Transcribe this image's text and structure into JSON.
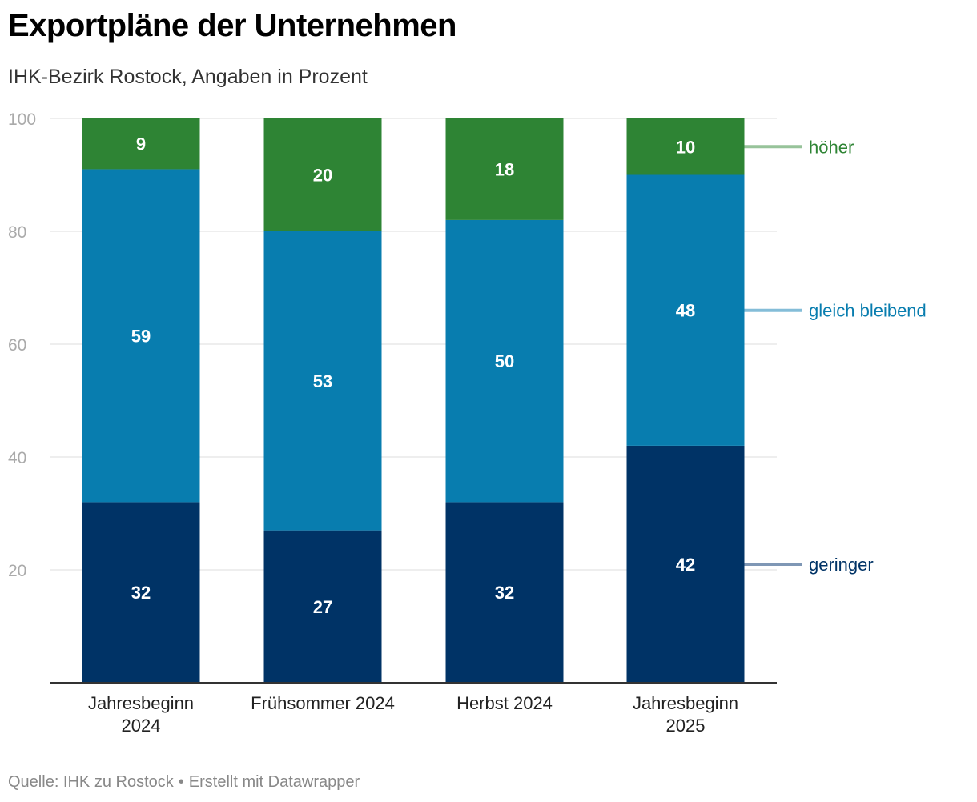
{
  "header": {
    "title": "Exportpläne der Unternehmen",
    "subtitle": "IHK-Bezirk Rostock, Angaben in Prozent"
  },
  "footer": {
    "source": "Quelle: IHK zu Rostock",
    "separator": "•",
    "credit": "Erstellt mit Datawrapper"
  },
  "chart_data": {
    "type": "bar",
    "stacked": true,
    "categories": [
      [
        "Jahresbeginn",
        "2024"
      ],
      [
        "Frühsommer 2024"
      ],
      [
        "Herbst 2024"
      ],
      [
        "Jahresbeginn",
        "2025"
      ]
    ],
    "series": [
      {
        "name": "geringer",
        "values": [
          32,
          27,
          32,
          42
        ],
        "color": "#003366",
        "label_color": "#003366",
        "line_color": "#7f97b5"
      },
      {
        "name": "gleich bleibend",
        "values": [
          59,
          53,
          50,
          48
        ],
        "color": "#087daf",
        "label_color": "#087daf",
        "line_color": "#84bdd8"
      },
      {
        "name": "höher",
        "values": [
          9,
          20,
          18,
          10
        ],
        "color": "#2e8434",
        "label_color": "#2e8434",
        "line_color": "#97c39a"
      }
    ],
    "ylim": [
      0,
      100
    ],
    "yticks": [
      20,
      40,
      60,
      80,
      100
    ],
    "grid": true,
    "legend": "right, direct labels next to last bar",
    "data_labels": true,
    "xlabel": "",
    "ylabel": ""
  }
}
